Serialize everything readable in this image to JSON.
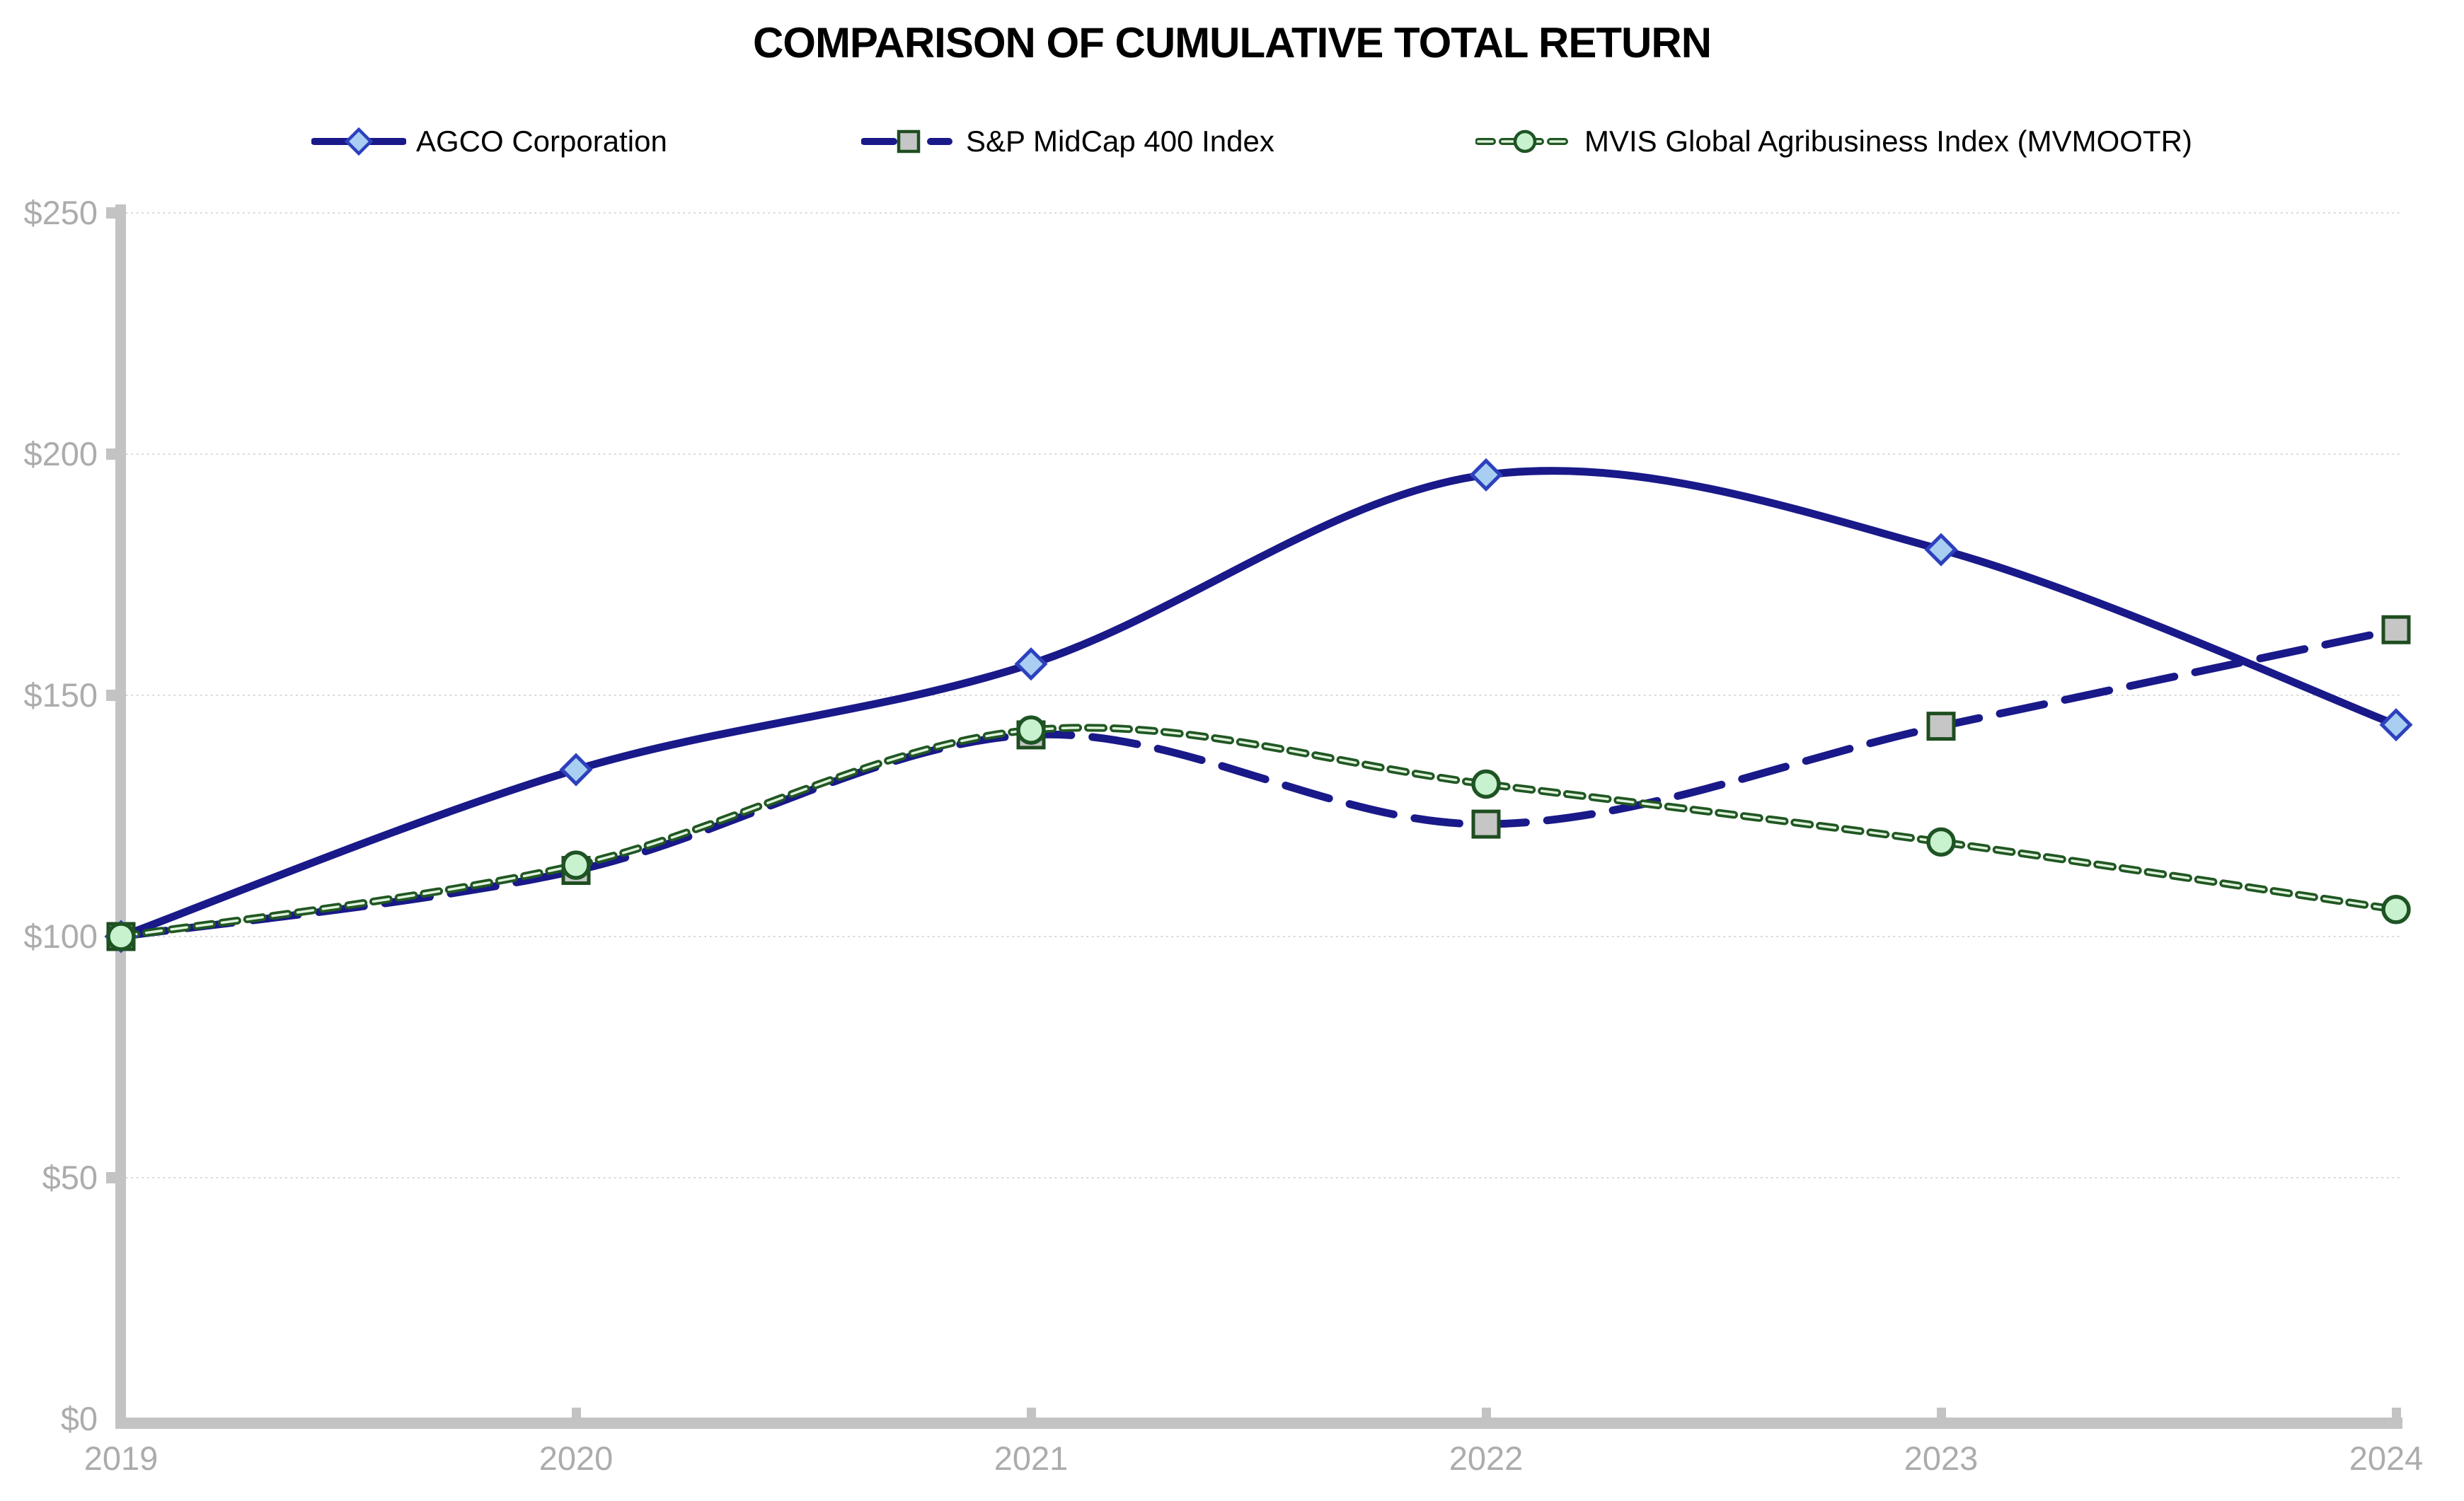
{
  "title": "COMPARISON OF CUMULATIVE TOTAL RETURN",
  "chart_data": {
    "type": "line",
    "title": "COMPARISON OF CUMULATIVE TOTAL RETURN",
    "x": [
      2019,
      2020,
      2021,
      2022,
      2023,
      2024
    ],
    "x_labels": [
      "2019",
      "2020",
      "2021",
      "2022",
      "2023",
      "2024"
    ],
    "ylim": [
      0,
      250
    ],
    "y_tick_interval": 50,
    "grid": "horizontal-dotted",
    "legend_position": "top",
    "y_ticks": [
      {
        "label": "$250",
        "value": 250
      },
      {
        "label": "$200",
        "value": 200
      },
      {
        "label": "$150",
        "value": 150
      },
      {
        "label": "$100",
        "value": 100
      },
      {
        "label": "$50",
        "value": 50
      },
      {
        "label": "$0",
        "value": 0
      }
    ],
    "series": [
      {
        "name": "AGCO Corporation",
        "values": [
          100,
          134.6,
          156.5,
          195.7,
          180.2,
          143.9
        ],
        "line_style": "solid",
        "color": "#191989",
        "marker": "diamond",
        "marker_fill": "#A8CFF2",
        "marker_stroke": "#2D41BE"
      },
      {
        "name": "S&P MidCap 400 Index",
        "values": [
          100,
          113.7,
          141.8,
          123.3,
          143.6,
          163.6
        ],
        "line_style": "long-dash",
        "color": "#191989",
        "marker": "square",
        "marker_fill": "#C6C6C6",
        "marker_stroke": "#1E4D1F"
      },
      {
        "name": "MVIS Global Agribusiness Index (MVMOOTR)",
        "values": [
          100,
          114.8,
          142.8,
          131.6,
          119.6,
          105.6
        ],
        "line_style": "short-dash",
        "color": "#215723",
        "core_color": "#DFF3DC",
        "marker": "circle",
        "marker_fill": "#C8F1CE",
        "marker_stroke": "#1E5424"
      }
    ],
    "axis_color": "#C3C3C3",
    "tick_label_color": "#ACACAC",
    "grid_color": "#D6D6D6"
  }
}
